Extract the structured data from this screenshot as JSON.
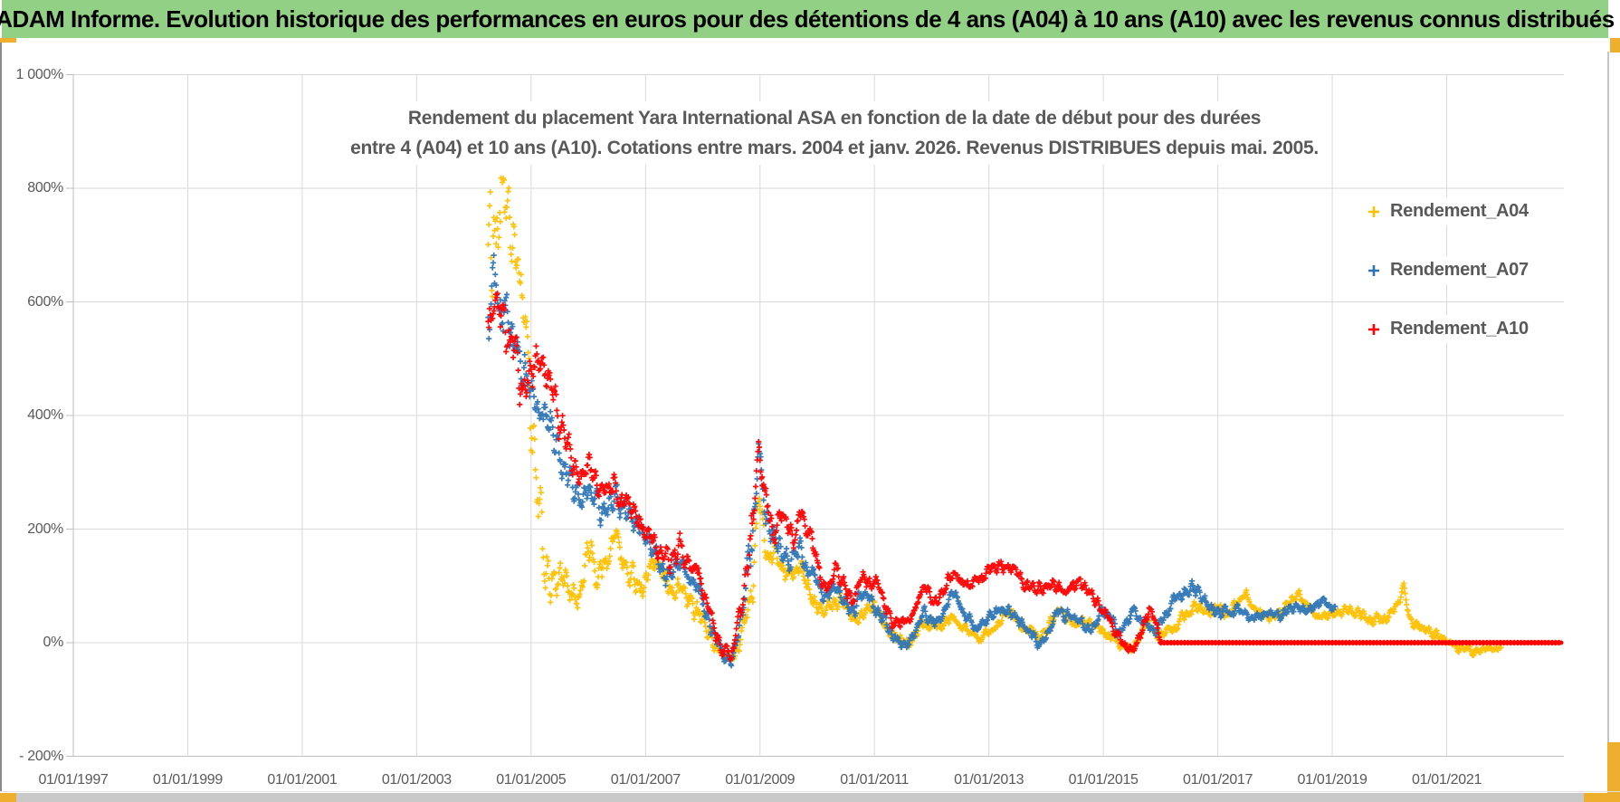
{
  "header": {
    "title": "ADAM Informe. Evolution historique des performances en euros pour des détentions de 4 ans (A04) à 10 ans (A10) avec les revenus connus distribués",
    "bar_color": "#92D185",
    "accent_color": "#EDAF2D"
  },
  "chart_data": {
    "type": "scatter",
    "title_lines": [
      "Rendement du placement Yara International ASA en fonction de la date de début pour des durées",
      "entre 4 (A04) et 10 ans (A10). Cotations entre mars. 2004 et janv. 2026. Revenus DISTRIBUES depuis mai. 2005."
    ],
    "x_axis": {
      "labels": [
        "01/01/1997",
        "01/01/1999",
        "01/01/2001",
        "01/01/2003",
        "01/01/2005",
        "01/01/2007",
        "01/01/2009",
        "01/01/2011",
        "01/01/2013",
        "01/01/2015",
        "01/01/2017",
        "01/01/2019",
        "01/01/2021"
      ],
      "tick_years": [
        1997,
        1999,
        2001,
        2003,
        2005,
        2007,
        2009,
        2011,
        2013,
        2015,
        2017,
        2019,
        2021
      ],
      "range_years": [
        1997,
        2023.05
      ],
      "grid": true
    },
    "y_axis": {
      "labels": [
        "1 000%",
        "800%",
        "600%",
        "400%",
        "200%",
        "0%",
        "- 200%"
      ],
      "tick_values": [
        1000,
        800,
        600,
        400,
        200,
        0,
        -200
      ],
      "range": [
        -200,
        1000
      ],
      "grid": true
    },
    "legend": {
      "position": "right",
      "entries": [
        {
          "name": "Rendement_A04",
          "color": "#FFC000"
        },
        {
          "name": "Rendement_A07",
          "color": "#2E75B6"
        },
        {
          "name": "Rendement_A10",
          "color": "#FF0000"
        }
      ]
    },
    "marker": "plus",
    "series": [
      {
        "name": "Rendement_A04",
        "color": "#FFC000",
        "anchors": [
          [
            2004.25,
            700,
            200
          ],
          [
            2004.45,
            780,
            150
          ],
          [
            2004.6,
            720,
            90
          ],
          [
            2004.75,
            660,
            70
          ],
          [
            2004.9,
            590,
            60
          ],
          [
            2005.0,
            420,
            120
          ],
          [
            2005.1,
            230,
            90
          ],
          [
            2005.25,
            120,
            60
          ],
          [
            2005.45,
            85,
            45
          ],
          [
            2005.65,
            105,
            40
          ],
          [
            2005.85,
            70,
            35
          ],
          [
            2006.0,
            180,
            40
          ],
          [
            2006.15,
            120,
            35
          ],
          [
            2006.3,
            150,
            35
          ],
          [
            2006.5,
            190,
            35
          ],
          [
            2006.7,
            115,
            30
          ],
          [
            2006.95,
            105,
            30
          ],
          [
            2007.15,
            140,
            30
          ],
          [
            2007.4,
            90,
            30
          ],
          [
            2007.6,
            95,
            25
          ],
          [
            2007.9,
            55,
            25
          ],
          [
            2008.1,
            20,
            20
          ],
          [
            2008.3,
            -15,
            15
          ],
          [
            2008.5,
            -35,
            12
          ],
          [
            2008.7,
            25,
            20
          ],
          [
            2008.88,
            120,
            40
          ],
          [
            2008.98,
            255,
            30
          ],
          [
            2009.1,
            160,
            30
          ],
          [
            2009.3,
            145,
            25
          ],
          [
            2009.5,
            110,
            22
          ],
          [
            2009.7,
            128,
            22
          ],
          [
            2009.9,
            92,
            20
          ],
          [
            2010.1,
            55,
            18
          ],
          [
            2010.4,
            78,
            18
          ],
          [
            2010.7,
            38,
            15
          ],
          [
            2011.0,
            62,
            15
          ],
          [
            2011.3,
            25,
            14
          ],
          [
            2011.6,
            0,
            12
          ],
          [
            2011.85,
            40,
            14
          ],
          [
            2012.1,
            30,
            12
          ],
          [
            2012.35,
            55,
            14
          ],
          [
            2012.6,
            20,
            12
          ],
          [
            2012.85,
            5,
            12
          ],
          [
            2013.1,
            35,
            12
          ],
          [
            2013.35,
            60,
            12
          ],
          [
            2013.6,
            30,
            12
          ],
          [
            2013.9,
            10,
            12
          ],
          [
            2014.2,
            55,
            12
          ],
          [
            2014.5,
            35,
            12
          ],
          [
            2014.8,
            25,
            12
          ],
          [
            2015.05,
            20,
            12
          ],
          [
            2015.3,
            -5,
            10
          ],
          [
            2015.5,
            -18,
            8
          ],
          [
            2015.75,
            35,
            12
          ],
          [
            2016.0,
            8,
            10
          ],
          [
            2016.3,
            35,
            12
          ],
          [
            2016.6,
            60,
            12
          ],
          [
            2016.9,
            62,
            12
          ],
          [
            2017.15,
            50,
            12
          ],
          [
            2017.5,
            80,
            12
          ],
          [
            2017.8,
            48,
            12
          ],
          [
            2018.1,
            60,
            12
          ],
          [
            2018.4,
            80,
            12
          ],
          [
            2018.7,
            52,
            12
          ],
          [
            2019.0,
            45,
            12
          ],
          [
            2019.3,
            56,
            12
          ],
          [
            2019.6,
            42,
            12
          ],
          [
            2019.95,
            40,
            12
          ],
          [
            2020.15,
            60,
            15
          ],
          [
            2020.25,
            92,
            10
          ],
          [
            2020.35,
            35,
            12
          ],
          [
            2020.6,
            22,
            10
          ],
          [
            2020.9,
            10,
            10
          ],
          [
            2021.2,
            -8,
            8
          ],
          [
            2021.5,
            -15,
            8
          ],
          [
            2021.75,
            -12,
            8
          ],
          [
            2021.95,
            -5,
            6
          ]
        ]
      },
      {
        "name": "Rendement_A07",
        "color": "#2E75B6",
        "anchors": [
          [
            2004.25,
            600,
            90
          ],
          [
            2004.4,
            640,
            70
          ],
          [
            2004.6,
            560,
            60
          ],
          [
            2004.8,
            480,
            55
          ],
          [
            2005.0,
            430,
            45
          ],
          [
            2005.2,
            400,
            40
          ],
          [
            2005.45,
            345,
            40
          ],
          [
            2005.65,
            290,
            35
          ],
          [
            2005.85,
            235,
            35
          ],
          [
            2006.05,
            265,
            30
          ],
          [
            2006.25,
            215,
            30
          ],
          [
            2006.45,
            250,
            30
          ],
          [
            2006.7,
            205,
            28
          ],
          [
            2006.95,
            185,
            28
          ],
          [
            2007.2,
            145,
            28
          ],
          [
            2007.45,
            120,
            25
          ],
          [
            2007.65,
            135,
            25
          ],
          [
            2007.9,
            100,
            25
          ],
          [
            2008.1,
            45,
            22
          ],
          [
            2008.3,
            -10,
            18
          ],
          [
            2008.5,
            -30,
            14
          ],
          [
            2008.7,
            50,
            25
          ],
          [
            2008.88,
            180,
            60
          ],
          [
            2008.97,
            370,
            25
          ],
          [
            2009.1,
            230,
            35
          ],
          [
            2009.3,
            170,
            28
          ],
          [
            2009.5,
            138,
            25
          ],
          [
            2009.7,
            168,
            25
          ],
          [
            2009.9,
            120,
            22
          ],
          [
            2010.1,
            75,
            20
          ],
          [
            2010.35,
            98,
            20
          ],
          [
            2010.6,
            52,
            18
          ],
          [
            2010.85,
            88,
            18
          ],
          [
            2011.1,
            48,
            16
          ],
          [
            2011.35,
            12,
            14
          ],
          [
            2011.6,
            2,
            12
          ],
          [
            2011.85,
            48,
            15
          ],
          [
            2012.1,
            35,
            14
          ],
          [
            2012.35,
            88,
            15
          ],
          [
            2012.6,
            40,
            14
          ],
          [
            2012.8,
            20,
            13
          ],
          [
            2013.05,
            45,
            14
          ],
          [
            2013.3,
            62,
            14
          ],
          [
            2013.55,
            35,
            13
          ],
          [
            2013.9,
            0,
            12
          ],
          [
            2014.2,
            60,
            14
          ],
          [
            2014.5,
            35,
            13
          ],
          [
            2014.75,
            28,
            12
          ],
          [
            2015.0,
            55,
            13
          ],
          [
            2015.3,
            12,
            12
          ],
          [
            2015.55,
            55,
            13
          ],
          [
            2015.85,
            22,
            12
          ],
          [
            2016.1,
            45,
            13
          ],
          [
            2016.35,
            92,
            15
          ],
          [
            2016.6,
            95,
            15
          ],
          [
            2016.85,
            60,
            14
          ],
          [
            2017.1,
            48,
            13
          ],
          [
            2017.35,
            58,
            13
          ],
          [
            2017.6,
            42,
            12
          ],
          [
            2017.85,
            58,
            13
          ],
          [
            2018.1,
            45,
            12
          ],
          [
            2018.35,
            68,
            13
          ],
          [
            2018.6,
            55,
            12
          ],
          [
            2018.85,
            72,
            12
          ],
          [
            2019.05,
            60,
            10
          ]
        ]
      },
      {
        "name": "Rendement_A10",
        "color": "#FF0000",
        "anchors": [
          [
            2004.25,
            560,
            60
          ],
          [
            2004.45,
            545,
            55
          ],
          [
            2004.65,
            515,
            50
          ],
          [
            2004.85,
            445,
            50
          ],
          [
            2005.0,
            465,
            50
          ],
          [
            2005.15,
            480,
            45
          ],
          [
            2005.35,
            440,
            40
          ],
          [
            2005.55,
            375,
            38
          ],
          [
            2005.75,
            305,
            35
          ],
          [
            2005.95,
            290,
            32
          ],
          [
            2006.1,
            300,
            30
          ],
          [
            2006.25,
            245,
            30
          ],
          [
            2006.45,
            300,
            30
          ],
          [
            2006.65,
            235,
            28
          ],
          [
            2006.9,
            215,
            28
          ],
          [
            2007.15,
            175,
            28
          ],
          [
            2007.4,
            135,
            26
          ],
          [
            2007.6,
            160,
            26
          ],
          [
            2007.9,
            120,
            25
          ],
          [
            2008.1,
            50,
            22
          ],
          [
            2008.3,
            -5,
            18
          ],
          [
            2008.5,
            -25,
            15
          ],
          [
            2008.7,
            60,
            25
          ],
          [
            2008.88,
            200,
            60
          ],
          [
            2008.97,
            335,
            25
          ],
          [
            2009.1,
            255,
            35
          ],
          [
            2009.25,
            195,
            30
          ],
          [
            2009.4,
            230,
            28
          ],
          [
            2009.6,
            195,
            26
          ],
          [
            2009.75,
            230,
            26
          ],
          [
            2009.95,
            160,
            24
          ],
          [
            2010.1,
            108,
            22
          ],
          [
            2010.35,
            128,
            20
          ],
          [
            2010.6,
            80,
            18
          ],
          [
            2010.85,
            118,
            18
          ],
          [
            2011.1,
            88,
            17
          ],
          [
            2011.35,
            28,
            15
          ],
          [
            2011.6,
            45,
            15
          ],
          [
            2011.85,
            92,
            16
          ],
          [
            2012.1,
            75,
            15
          ],
          [
            2012.35,
            128,
            16
          ],
          [
            2012.6,
            92,
            15
          ],
          [
            2012.85,
            108,
            15
          ],
          [
            2013.1,
            128,
            15
          ],
          [
            2013.35,
            142,
            15
          ],
          [
            2013.6,
            108,
            14
          ],
          [
            2013.85,
            88,
            14
          ],
          [
            2014.1,
            112,
            14
          ],
          [
            2014.35,
            90,
            13
          ],
          [
            2014.6,
            102,
            13
          ],
          [
            2014.85,
            78,
            13
          ],
          [
            2015.1,
            45,
            13
          ],
          [
            2015.35,
            2,
            11
          ],
          [
            2015.55,
            -8,
            10
          ],
          [
            2015.8,
            58,
            12
          ],
          [
            2015.95,
            25,
            10
          ],
          [
            2016.0,
            0,
            0
          ]
        ],
        "flat_zero_segment": {
          "start_year": 2016.0,
          "end_year": 2023.0,
          "value": 0
        }
      }
    ],
    "grid_color": "#D9D9D9",
    "axis_color": "#BFBFBF",
    "text_color": "#595959"
  }
}
